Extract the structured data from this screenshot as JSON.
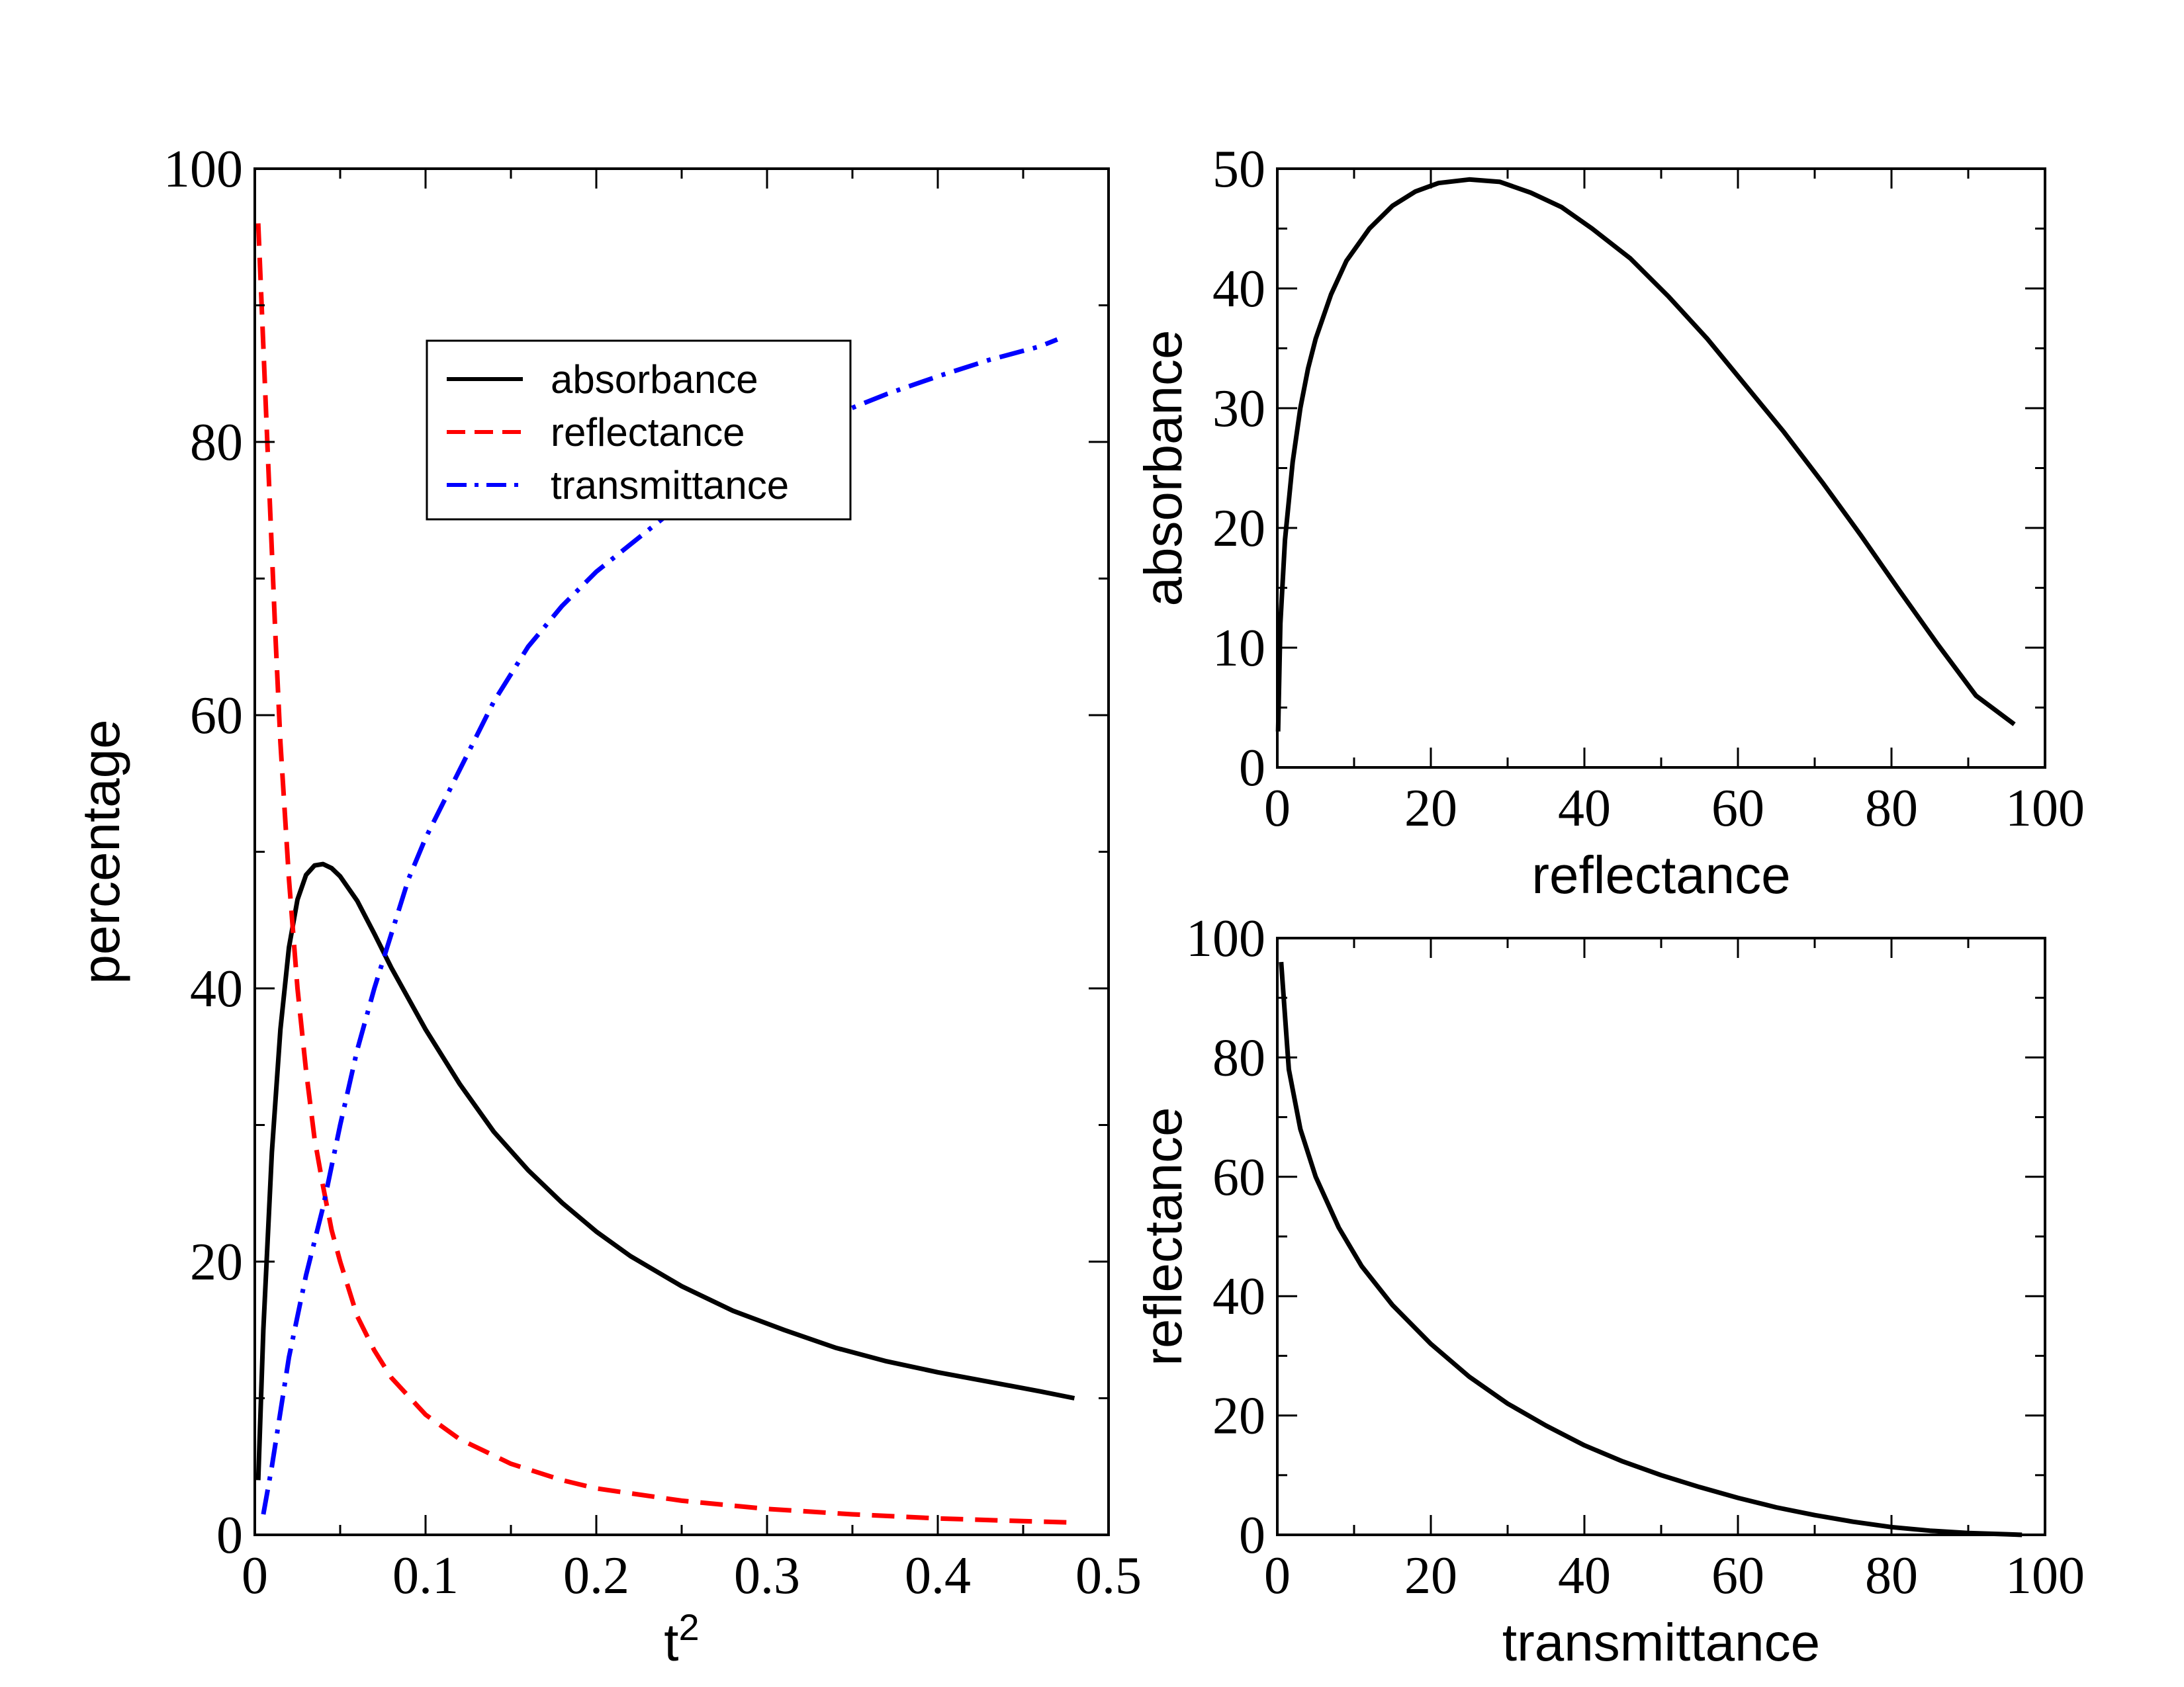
{
  "chart_data": [
    {
      "id": "main",
      "type": "line",
      "title": "",
      "xlabel": "t",
      "xlabel_superscript": "2",
      "ylabel": "percentage",
      "xlim": [
        0,
        0.5
      ],
      "ylim": [
        0,
        100
      ],
      "xticks": [
        0,
        0.1,
        0.2,
        0.3,
        0.4,
        0.5
      ],
      "xtick_labels": [
        "0",
        "0.1",
        "0.2",
        "0.3",
        "0.4",
        "0.5"
      ],
      "yticks": [
        0,
        20,
        40,
        60,
        80,
        100
      ],
      "ytick_labels": [
        "0",
        "20",
        "40",
        "60",
        "80",
        "100"
      ],
      "xminor": [
        0.05,
        0.15,
        0.25,
        0.35,
        0.45
      ],
      "yminor": [
        10,
        30,
        50,
        70,
        90
      ],
      "grid": false,
      "legend_position": "upper-middle",
      "series": [
        {
          "name": "absorbance",
          "color": "#000000",
          "style": "solid",
          "x": [
            0.002,
            0.005,
            0.01,
            0.015,
            0.02,
            0.025,
            0.03,
            0.035,
            0.04,
            0.045,
            0.05,
            0.06,
            0.07,
            0.08,
            0.1,
            0.12,
            0.14,
            0.16,
            0.18,
            0.2,
            0.22,
            0.25,
            0.28,
            0.31,
            0.34,
            0.37,
            0.4,
            0.43,
            0.46,
            0.48
          ],
          "y": [
            4,
            15,
            28,
            37,
            43,
            46.5,
            48.3,
            49,
            49.1,
            48.8,
            48.2,
            46.4,
            44,
            41.5,
            37,
            33,
            29.5,
            26.7,
            24.3,
            22.2,
            20.4,
            18.2,
            16.4,
            15,
            13.7,
            12.7,
            11.9,
            11.2,
            10.5,
            10
          ]
        },
        {
          "name": "reflectance",
          "color": "#ff0000",
          "style": "dashed",
          "x": [
            0.002,
            0.005,
            0.008,
            0.01,
            0.012,
            0.015,
            0.02,
            0.025,
            0.03,
            0.035,
            0.04,
            0.045,
            0.05,
            0.06,
            0.07,
            0.08,
            0.1,
            0.12,
            0.15,
            0.18,
            0.2,
            0.25,
            0.3,
            0.35,
            0.4,
            0.45,
            0.48
          ],
          "y": [
            96,
            87,
            78,
            72,
            66,
            58,
            48,
            40,
            34,
            29,
            25.5,
            22.3,
            20,
            16,
            13.5,
            11.5,
            8.8,
            7,
            5.2,
            4,
            3.4,
            2.5,
            1.9,
            1.5,
            1.2,
            1,
            0.9
          ]
        },
        {
          "name": "transmittance",
          "color": "#0000ff",
          "style": "dashdot",
          "x": [
            0.005,
            0.01,
            0.015,
            0.02,
            0.03,
            0.04,
            0.05,
            0.06,
            0.07,
            0.08,
            0.09,
            0.1,
            0.12,
            0.14,
            0.16,
            0.18,
            0.2,
            0.22,
            0.25,
            0.28,
            0.31,
            0.34,
            0.37,
            0.4,
            0.43,
            0.46,
            0.47
          ],
          "y": [
            1.5,
            5,
            9,
            13,
            19,
            24,
            30,
            35.5,
            40,
            44,
            48,
            51,
            56,
            61,
            65,
            68,
            70.5,
            72.5,
            75.5,
            78,
            80,
            82,
            83.5,
            84.8,
            86,
            87,
            87.5
          ]
        }
      ]
    },
    {
      "id": "top-right",
      "type": "line",
      "title": "",
      "xlabel": "reflectance",
      "ylabel": "absorbance",
      "xlim": [
        0,
        100
      ],
      "ylim": [
        0,
        50
      ],
      "xticks": [
        0,
        20,
        40,
        60,
        80,
        100
      ],
      "xtick_labels": [
        "0",
        "20",
        "40",
        "60",
        "80",
        "100"
      ],
      "yticks": [
        0,
        10,
        20,
        30,
        40,
        50
      ],
      "ytick_labels": [
        "0",
        "10",
        "20",
        "30",
        "40",
        "50"
      ],
      "xminor": [
        10,
        30,
        50,
        70,
        90
      ],
      "yminor": [
        5,
        15,
        25,
        35,
        45
      ],
      "grid": false,
      "series": [
        {
          "color": "#000000",
          "style": "solid",
          "x": [
            0.1,
            0.4,
            1,
            2,
            3,
            4,
            5,
            7,
            9,
            12,
            15,
            18,
            21,
            25,
            29,
            33,
            37,
            41,
            46,
            51,
            56,
            61,
            66,
            71,
            76,
            81,
            86,
            91,
            96
          ],
          "y": [
            3,
            12,
            19,
            25.5,
            30,
            33.3,
            35.8,
            39.5,
            42.3,
            45,
            46.9,
            48.1,
            48.8,
            49.1,
            48.9,
            48,
            46.8,
            45,
            42.5,
            39.3,
            35.8,
            31.9,
            28,
            23.8,
            19.4,
            14.8,
            10.3,
            6,
            3.6
          ]
        }
      ]
    },
    {
      "id": "bottom-right",
      "type": "line",
      "title": "",
      "xlabel": "transmittance",
      "ylabel": "reflectance",
      "xlim": [
        0,
        100
      ],
      "ylim": [
        0,
        100
      ],
      "xticks": [
        0,
        20,
        40,
        60,
        80,
        100
      ],
      "xtick_labels": [
        "0",
        "20",
        "40",
        "60",
        "80",
        "100"
      ],
      "yticks": [
        0,
        20,
        40,
        60,
        80,
        100
      ],
      "ytick_labels": [
        "0",
        "20",
        "40",
        "60",
        "80",
        "100"
      ],
      "xminor": [
        10,
        30,
        50,
        70,
        90
      ],
      "yminor": [
        10,
        30,
        50,
        70,
        90
      ],
      "grid": false,
      "series": [
        {
          "color": "#000000",
          "style": "solid",
          "x": [
            0.5,
            1.5,
            3,
            5,
            8,
            11,
            15,
            20,
            25,
            30,
            35,
            40,
            45,
            50,
            55,
            60,
            65,
            70,
            75,
            80,
            85,
            90,
            95,
            97
          ],
          "y": [
            96,
            78,
            68,
            60,
            51.5,
            45,
            38.5,
            32,
            26.5,
            22,
            18.3,
            15,
            12.3,
            10,
            8,
            6.2,
            4.6,
            3.3,
            2.2,
            1.3,
            0.7,
            0.3,
            0.1,
            0
          ]
        }
      ]
    }
  ]
}
